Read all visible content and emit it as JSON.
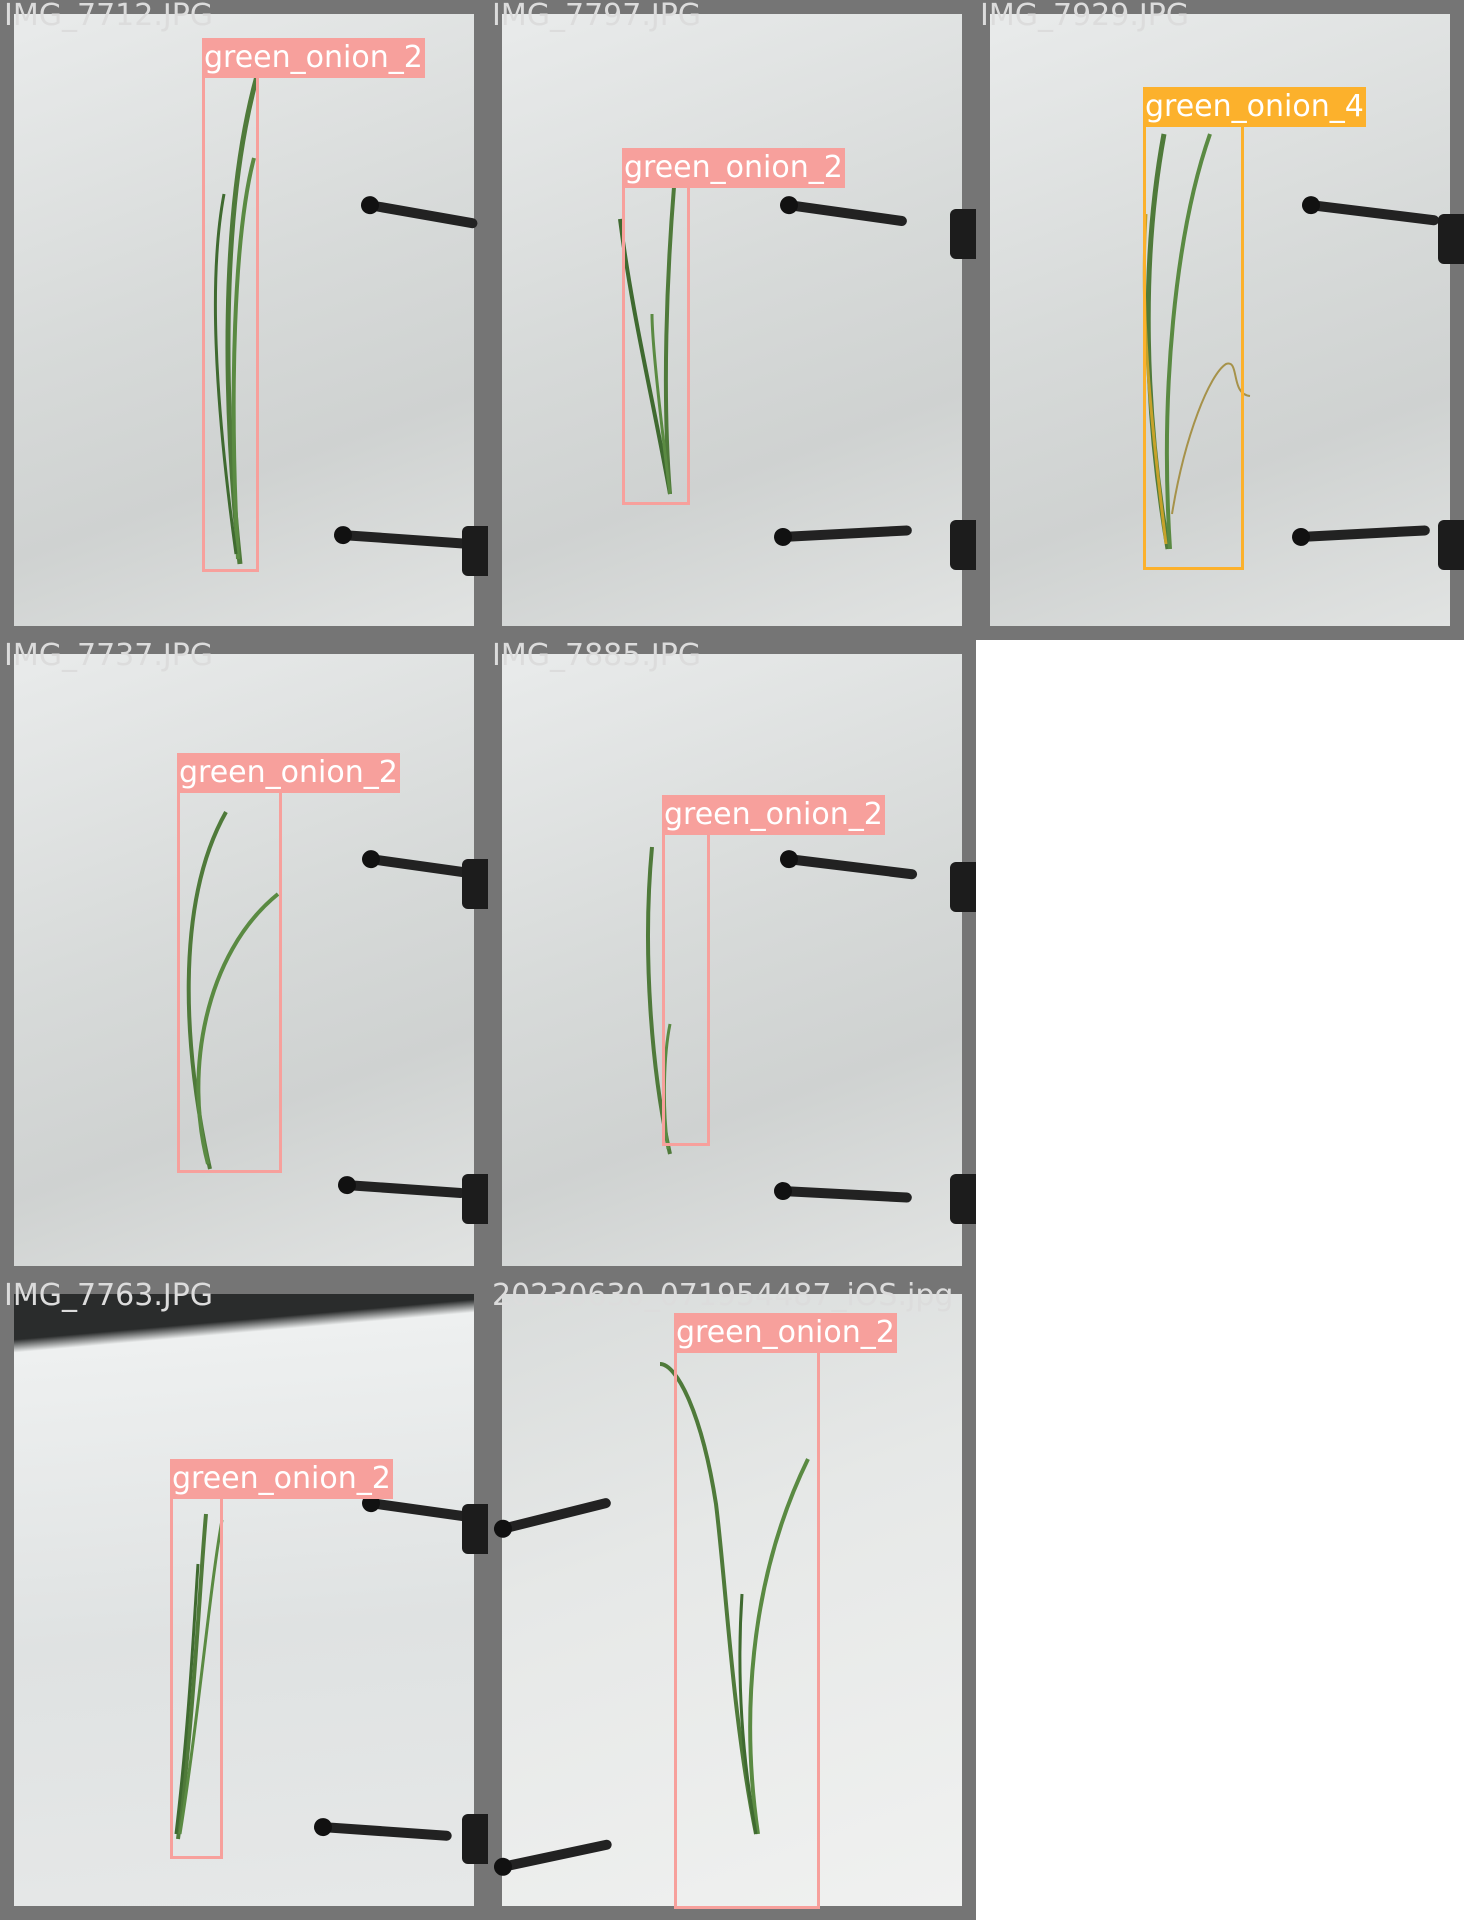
{
  "tiles": [
    {
      "filename": "IMG_7712.JPG",
      "detections": [
        {
          "label": "green_onion_2",
          "color": "#f7a09c"
        }
      ]
    },
    {
      "filename": "IMG_7797.JPG",
      "detections": [
        {
          "label": "green_onion_2",
          "color": "#f7a09c"
        }
      ]
    },
    {
      "filename": "IMG_7929.JPG",
      "detections": [
        {
          "label": "green_onion_4",
          "color": "#fcb12c"
        }
      ]
    },
    {
      "filename": "IMG_7737.JPG",
      "detections": [
        {
          "label": "green_onion_2",
          "color": "#f7a09c"
        }
      ]
    },
    {
      "filename": "IMG_7885.JPG",
      "detections": [
        {
          "label": "green_onion_2",
          "color": "#f7a09c"
        }
      ]
    },
    {
      "filename": "IMG_7763.JPG",
      "detections": [
        {
          "label": "green_onion_2",
          "color": "#f7a09c"
        }
      ]
    },
    {
      "filename": "20230630_071954487_iOS.jpg",
      "detections": [
        {
          "label": "green_onion_2",
          "color": "#f7a09c"
        }
      ]
    }
  ]
}
